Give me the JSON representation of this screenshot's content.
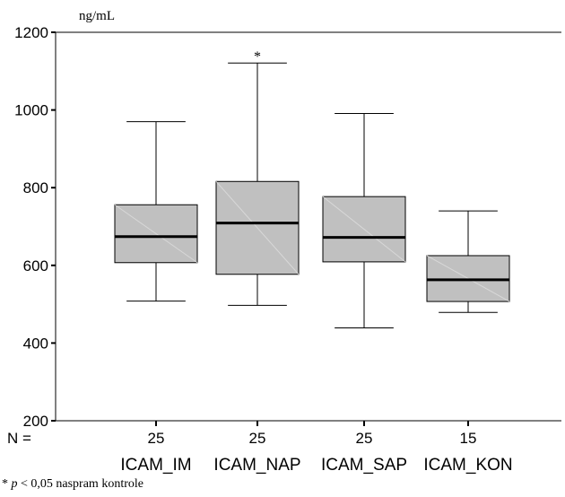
{
  "chart_data": {
    "type": "boxplot",
    "title": "",
    "ylabel": "ng/mL",
    "xlabel": "",
    "ylim": [
      200,
      1200
    ],
    "yticks": [
      200,
      400,
      600,
      800,
      1000,
      1200
    ],
    "n_label": "N =",
    "grid": false,
    "box_color": "#c0c0c0",
    "categories": [
      "ICAM_IM",
      "ICAM_NAP",
      "ICAM_SAP",
      "ICAM_KON"
    ],
    "n": [
      "25",
      "25",
      "25",
      "15"
    ],
    "boxes": [
      {
        "min": 508,
        "q1": 607,
        "median": 674,
        "q3": 756,
        "max": 970,
        "marker": ""
      },
      {
        "min": 497,
        "q1": 577,
        "median": 709,
        "q3": 816,
        "max": 1121,
        "marker": "*"
      },
      {
        "min": 439,
        "q1": 609,
        "median": 672,
        "q3": 777,
        "max": 991,
        "marker": ""
      },
      {
        "min": 479,
        "q1": 507,
        "median": 563,
        "q3": 625,
        "max": 740,
        "marker": ""
      }
    ]
  },
  "footnote": {
    "star": "* ",
    "p": "p",
    "rest": " < 0,05 naspram kontrole"
  }
}
